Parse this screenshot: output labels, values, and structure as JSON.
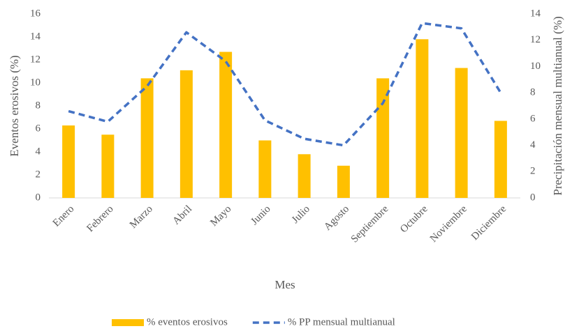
{
  "chart_data": {
    "type": "bar-line",
    "categories": [
      "Enero",
      "Febrero",
      "Marzo",
      "Abril",
      "Mayo",
      "Junio",
      "Julio",
      "Agosto",
      "Septiembre",
      "Octubre",
      "Noviembre",
      "Diciembre"
    ],
    "xlabel": "Mes",
    "ylabel": "Eventos erosivos (%)",
    "y2label": "Precipitación mensual multianual (%)",
    "ylim": [
      0,
      16
    ],
    "yticks": [
      0,
      2,
      4,
      6,
      8,
      10,
      12,
      14,
      16
    ],
    "y2lim": [
      0,
      14
    ],
    "y2ticks": [
      0,
      2,
      4,
      6,
      8,
      10,
      12,
      14
    ],
    "series": [
      {
        "name": "% eventos erosivos",
        "color": "#ffc000",
        "kind": "bar",
        "values": [
          6.3,
          5.5,
          10.4,
          11.1,
          12.7,
          5.0,
          3.8,
          2.8,
          10.4,
          13.8,
          11.3,
          6.7
        ]
      },
      {
        "name": "% PP mensual multianual",
        "color": "#4472c4",
        "kind": "line",
        "axis": "y2",
        "dashed": true,
        "values": [
          6.6,
          5.8,
          8.5,
          12.6,
          10.4,
          5.9,
          4.5,
          4.0,
          7.2,
          13.3,
          12.9,
          8.0
        ]
      }
    ],
    "legend": "bottom"
  }
}
